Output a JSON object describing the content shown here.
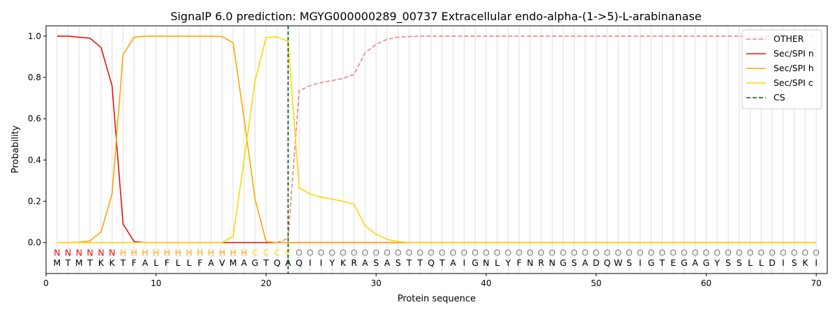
{
  "chart_data": {
    "type": "line",
    "title": "SignalP 6.0 prediction: MGYG000000289_00737 Extracellular endo-alpha-(1->5)-L-arabinanase",
    "xlabel": "Protein sequence",
    "ylabel": "Probability",
    "xlim": [
      0,
      71
    ],
    "ylim": [
      -0.15,
      1.05
    ],
    "xticks": [
      "0",
      "10",
      "20",
      "30",
      "40",
      "50",
      "60",
      "70"
    ],
    "yticks": [
      "0.0",
      "0.2",
      "0.4",
      "0.6",
      "0.8",
      "1.0"
    ],
    "legend_position": "top-right",
    "x": [
      1,
      2,
      3,
      4,
      5,
      6,
      7,
      8,
      9,
      10,
      11,
      12,
      13,
      14,
      15,
      16,
      17,
      18,
      19,
      20,
      21,
      22,
      23,
      24,
      25,
      26,
      27,
      28,
      29,
      30,
      31,
      32,
      33,
      34,
      35,
      36,
      37,
      38,
      39,
      40,
      41,
      42,
      43,
      44,
      45,
      46,
      47,
      48,
      49,
      50,
      51,
      52,
      53,
      54,
      55,
      56,
      57,
      58,
      59,
      60,
      61,
      62,
      63,
      64,
      65,
      66,
      67,
      68,
      69,
      70
    ],
    "series": [
      {
        "name": "OTHER",
        "color": "#f08080",
        "dash": "dashed",
        "values": [
          0,
          0,
          0,
          0,
          0,
          0,
          0,
          0,
          0,
          0,
          0,
          0,
          0,
          0,
          0,
          0,
          0,
          0,
          0,
          0,
          0,
          0.02,
          0.735,
          0.76,
          0.775,
          0.785,
          0.795,
          0.815,
          0.92,
          0.96,
          0.985,
          0.995,
          0.998,
          1,
          1,
          1,
          1,
          1,
          1,
          1,
          1,
          1,
          1,
          1,
          1,
          1,
          1,
          1,
          1,
          1,
          1,
          1,
          1,
          1,
          1,
          1,
          1,
          1,
          1,
          1,
          1,
          1,
          1,
          1,
          1,
          1,
          1,
          1,
          1,
          1
        ]
      },
      {
        "name": "Sec/SPI n",
        "color": "#e8120c",
        "dash": "solid",
        "values": [
          1,
          1,
          0.995,
          0.99,
          0.945,
          0.76,
          0.09,
          0.005,
          0,
          0,
          0,
          0,
          0,
          0,
          0,
          0,
          0,
          0,
          0,
          0,
          0,
          0,
          0,
          0,
          0,
          0,
          0,
          0,
          0,
          0,
          0,
          0,
          0,
          0,
          0,
          0,
          0,
          0,
          0,
          0,
          0,
          0,
          0,
          0,
          0,
          0,
          0,
          0,
          0,
          0,
          0,
          0,
          0,
          0,
          0,
          0,
          0,
          0,
          0,
          0,
          0,
          0,
          0,
          0,
          0,
          0,
          0,
          0,
          0,
          0
        ]
      },
      {
        "name": "Sec/SPI h",
        "color": "#ffa500",
        "dash": "solid",
        "values": [
          0,
          0,
          0.002,
          0.008,
          0.052,
          0.235,
          0.91,
          0.995,
          1,
          1,
          1,
          1,
          1,
          1,
          1,
          0.998,
          0.968,
          0.6,
          0.21,
          0.005,
          0,
          0,
          0,
          0,
          0,
          0,
          0,
          0,
          0,
          0,
          0,
          0,
          0,
          0,
          0,
          0,
          0,
          0,
          0,
          0,
          0,
          0,
          0,
          0,
          0,
          0,
          0,
          0,
          0,
          0,
          0,
          0,
          0,
          0,
          0,
          0,
          0,
          0,
          0,
          0,
          0,
          0,
          0,
          0,
          0,
          0,
          0,
          0,
          0,
          0
        ]
      },
      {
        "name": "Sec/SPI c",
        "color": "#ffd700",
        "dash": "solid",
        "values": [
          0,
          0,
          0,
          0,
          0,
          0,
          0,
          0,
          0,
          0,
          0,
          0,
          0,
          0,
          0,
          0,
          0.03,
          0.4,
          0.785,
          0.993,
          0.996,
          0.975,
          0.265,
          0.235,
          0.22,
          0.21,
          0.2,
          0.185,
          0.08,
          0.04,
          0.015,
          0.005,
          0,
          0,
          0,
          0,
          0,
          0,
          0,
          0,
          0,
          0,
          0,
          0,
          0,
          0,
          0,
          0,
          0,
          0,
          0,
          0,
          0,
          0,
          0,
          0,
          0,
          0,
          0,
          0,
          0,
          0,
          0,
          0,
          0,
          0,
          0,
          0,
          0,
          0
        ]
      }
    ],
    "cs": {
      "name": "CS",
      "x": 22,
      "color": "#006400"
    },
    "sequence": [
      "M",
      "T",
      "M",
      "T",
      "K",
      "K",
      "T",
      "F",
      "A",
      "L",
      "F",
      "L",
      "L",
      "F",
      "A",
      "V",
      "M",
      "A",
      "G",
      "T",
      "Q",
      "A",
      "Q",
      "I",
      "I",
      "Y",
      "K",
      "R",
      "A",
      "S",
      "A",
      "S",
      "T",
      "T",
      "Q",
      "T",
      "A",
      "I",
      "G",
      "N",
      "L",
      "Y",
      "F",
      "N",
      "R",
      "N",
      "G",
      "S",
      "A",
      "D",
      "Q",
      "W",
      "S",
      "I",
      "G",
      "T",
      "E",
      "G",
      "A",
      "G",
      "Y",
      "S",
      "S",
      "L",
      "L",
      "D",
      "I",
      "S",
      "K",
      "I"
    ],
    "region_labels": [
      "N",
      "N",
      "N",
      "N",
      "N",
      "N",
      "H",
      "H",
      "H",
      "H",
      "H",
      "H",
      "H",
      "H",
      "H",
      "H",
      "H",
      "H",
      "C",
      "C",
      "C",
      "C",
      "O",
      "O",
      "O",
      "O",
      "O",
      "O",
      "O",
      "O",
      "O",
      "O",
      "O",
      "O",
      "O",
      "O",
      "O",
      "O",
      "O",
      "O",
      "O",
      "O",
      "O",
      "O",
      "O",
      "O",
      "O",
      "O",
      "O",
      "O",
      "O",
      "O",
      "O",
      "O",
      "O",
      "O",
      "O",
      "O",
      "O",
      "O",
      "O",
      "O",
      "O",
      "O",
      "O",
      "O",
      "O",
      "O",
      "O",
      "O"
    ],
    "region_colors": {
      "N": "#e8120c",
      "H": "#ffa500",
      "C": "#ffd700",
      "O": "#808080"
    }
  }
}
